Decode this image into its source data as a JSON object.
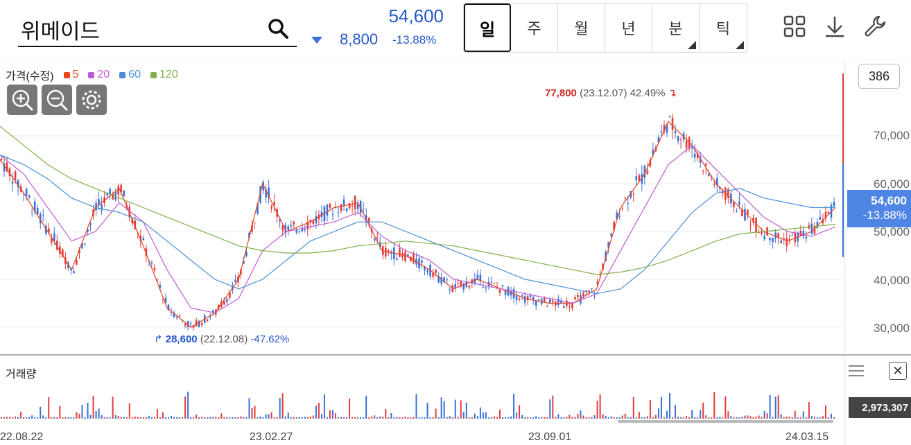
{
  "header": {
    "stock_name": "위메이드",
    "price": "54,600",
    "change": "8,800",
    "change_pct": "-13.88%"
  },
  "tabs": [
    {
      "label": "일",
      "active": true
    },
    {
      "label": "주"
    },
    {
      "label": "월"
    },
    {
      "label": "년"
    },
    {
      "label": "분",
      "dropdown": true
    },
    {
      "label": "틱",
      "dropdown": true
    }
  ],
  "legend": {
    "title": "가격(수정)",
    "items": [
      {
        "label": "5",
        "color": "#e8451e"
      },
      {
        "label": "20",
        "color": "#c05ad6"
      },
      {
        "label": "60",
        "color": "#4a8fd6"
      },
      {
        "label": "120",
        "color": "#7fb04a"
      }
    ]
  },
  "badge_count": "386",
  "y_ticks": [
    "70,000",
    "60,000",
    "50,000",
    "40,000",
    "30,000"
  ],
  "current_tag": {
    "price": "54,600",
    "pct": "-13.88%"
  },
  "high_annotation": {
    "value": "77,800",
    "date": "(23.12.07)",
    "pct": "42.49%"
  },
  "low_annotation": {
    "value": "28,600",
    "date": "(22.12.08)",
    "pct": "-47.62%"
  },
  "volume": {
    "title": "거래량",
    "last": "2,973,307"
  },
  "x_ticks": [
    "22.08.22",
    "23.02.27",
    "23.09.01",
    "24.03.15"
  ],
  "icons": [
    "grid-icon",
    "download-icon",
    "wrench-icon",
    "search-icon",
    "zoom-in-icon",
    "zoom-out-icon",
    "gear-icon",
    "menu-icon",
    "close-icon"
  ],
  "colors": {
    "up": "#e23b3b",
    "down": "#3a6fd8",
    "accent": "#2458c9"
  },
  "chart_data": {
    "type": "line",
    "x_ticks": [
      "22.08.22",
      "23.02.27",
      "23.09.01",
      "24.03.15"
    ],
    "ylim": [
      25000,
      80000
    ],
    "y_ticks": [
      30000,
      40000,
      50000,
      60000,
      70000
    ],
    "series": [
      {
        "name": "5",
        "values": [
          65000,
          58000,
          50000,
          42000,
          55000,
          59000,
          47000,
          34000,
          30000,
          33000,
          40000,
          60000,
          50000,
          52000,
          55000,
          56000,
          46000,
          45000,
          42000,
          38000,
          40000,
          38000,
          36000,
          35000,
          35000,
          38000,
          55000,
          62000,
          73000,
          68000,
          60000,
          55000,
          50000,
          48000,
          50000,
          55000
        ]
      },
      {
        "name": "20",
        "values": [
          66000,
          62000,
          55000,
          48000,
          50000,
          56000,
          52000,
          42000,
          34000,
          33000,
          36000,
          46000,
          50000,
          51000,
          52000,
          54000,
          49000,
          46000,
          44000,
          40000,
          39000,
          38000,
          37000,
          36000,
          35000,
          37000,
          46000,
          55000,
          64000,
          68000,
          63000,
          58000,
          53000,
          50000,
          49000,
          51000
        ]
      },
      {
        "name": "60",
        "values": [
          66000,
          64000,
          61000,
          57000,
          55000,
          54000,
          52000,
          48000,
          44000,
          40000,
          38000,
          40000,
          44000,
          48000,
          50000,
          52000,
          52000,
          50000,
          48000,
          46000,
          44000,
          42000,
          40000,
          39000,
          38000,
          37000,
          38000,
          42000,
          48000,
          54000,
          58000,
          59000,
          57000,
          56000,
          55000,
          55000
        ]
      },
      {
        "name": "120",
        "values": [
          72000,
          68000,
          64000,
          61000,
          59000,
          57000,
          55000,
          53000,
          51000,
          49000,
          47000,
          46000,
          45500,
          45500,
          46000,
          47000,
          47500,
          48000,
          47500,
          47000,
          46000,
          45000,
          44000,
          43000,
          42000,
          41000,
          41500,
          42500,
          44000,
          46000,
          48000,
          49500,
          50000,
          50500,
          51000,
          51500
        ]
      }
    ],
    "annotations": [
      {
        "label": "77,800",
        "date": "23.12.07",
        "pct": "42.49%"
      },
      {
        "label": "28,600",
        "date": "22.12.08",
        "pct": "-47.62%"
      }
    ]
  }
}
